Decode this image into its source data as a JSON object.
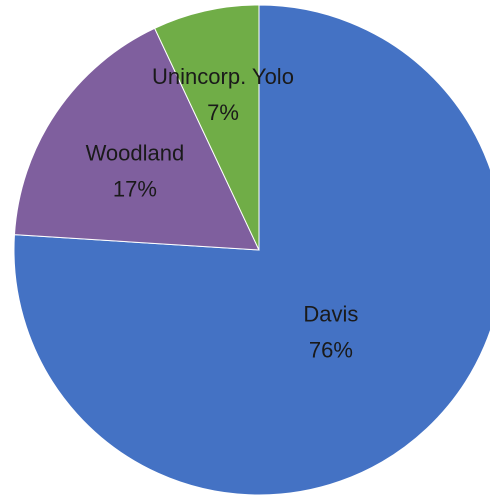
{
  "chart_data": {
    "type": "pie",
    "slices": [
      {
        "category": "Davis",
        "value": 76,
        "value_label": "76%",
        "color": "#4472C4"
      },
      {
        "category": "Woodland",
        "value": 17,
        "value_label": "17%",
        "color": "#7F5F9E"
      },
      {
        "category": "Unincorp. Yolo",
        "value": 7,
        "value_label": "7%",
        "color": "#70AD47"
      }
    ],
    "start": "12 o'clock",
    "direction": "clockwise",
    "legend": "none",
    "data_labels": "inside"
  }
}
